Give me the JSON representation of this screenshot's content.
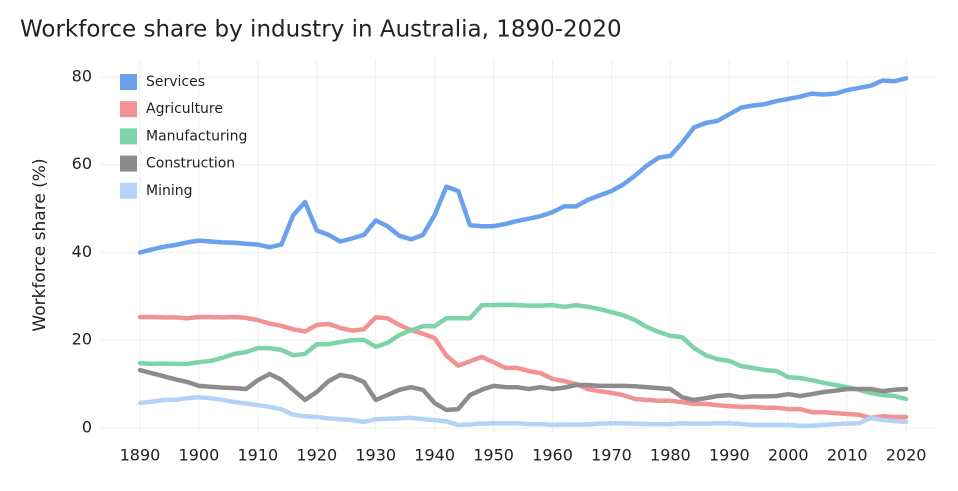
{
  "chart_data": {
    "type": "line",
    "title": "Workforce share by industry in Australia, 1890-2020",
    "ylabel": "Workforce share (%)",
    "x": [
      1890,
      1892,
      1894,
      1896,
      1898,
      1900,
      1902,
      1904,
      1906,
      1908,
      1910,
      1912,
      1914,
      1916,
      1918,
      1920,
      1922,
      1924,
      1926,
      1928,
      1930,
      1932,
      1934,
      1936,
      1938,
      1940,
      1942,
      1944,
      1946,
      1948,
      1950,
      1952,
      1954,
      1956,
      1958,
      1960,
      1962,
      1964,
      1966,
      1968,
      1970,
      1972,
      1974,
      1976,
      1978,
      1980,
      1982,
      1984,
      1986,
      1988,
      1990,
      1992,
      1994,
      1996,
      1998,
      2000,
      2002,
      2004,
      2006,
      2008,
      2010,
      2012,
      2014,
      2016,
      2018,
      2020
    ],
    "series": [
      {
        "name": "Services",
        "color": "#6aa0ec",
        "values": [
          40,
          40.7,
          41.3,
          41.7,
          42.3,
          42.7,
          42.5,
          42.3,
          42.2,
          42,
          41.8,
          41.2,
          41.8,
          48.5,
          51.5,
          45,
          44,
          42.5,
          43.2,
          44,
          47.3,
          46,
          43.8,
          43,
          44,
          48.5,
          55,
          54,
          46.2,
          46,
          46,
          46.5,
          47.2,
          47.7,
          48.3,
          49.2,
          50.5,
          50.5,
          52,
          53,
          54,
          55.5,
          57.5,
          59.8,
          61.6,
          62,
          65,
          68.5,
          69.5,
          70,
          71.5,
          73,
          73.5,
          73.8,
          74.5,
          75,
          75.5,
          76.2,
          76,
          76.2,
          77,
          77.5,
          78,
          79.2,
          79,
          79.7
        ]
      },
      {
        "name": "Agriculture",
        "color": "#f09392",
        "values": [
          25.3,
          25.3,
          25.2,
          25.2,
          25,
          25.3,
          25.3,
          25.2,
          25.3,
          25.1,
          24.6,
          23.8,
          23.3,
          22.5,
          22,
          23.5,
          23.7,
          22.8,
          22.2,
          22.5,
          25.2,
          25,
          23.5,
          22.3,
          21.5,
          20.5,
          16.5,
          14.2,
          15.2,
          16.2,
          15,
          13.7,
          13.7,
          13,
          12.5,
          11.2,
          10.7,
          10,
          8.9,
          8.4,
          8,
          7.5,
          6.6,
          6.4,
          6.2,
          6.2,
          5.9,
          5.5,
          5.5,
          5.2,
          5,
          4.8,
          4.8,
          4.6,
          4.6,
          4.3,
          4.3,
          3.6,
          3.6,
          3.4,
          3.2,
          3,
          2.3,
          2.7,
          2.5,
          2.5
        ]
      },
      {
        "name": "Manufacturing",
        "color": "#7fd3a9",
        "values": [
          14.8,
          14.6,
          14.7,
          14.6,
          14.6,
          15,
          15.3,
          16,
          16.9,
          17.3,
          18.2,
          18.2,
          17.8,
          16.6,
          16.9,
          19.1,
          19.1,
          19.6,
          20,
          20.1,
          18.5,
          19.4,
          21.2,
          22.3,
          23.2,
          23.2,
          25,
          25,
          25,
          28,
          28,
          28.1,
          28,
          27.9,
          27.9,
          28,
          27.6,
          28,
          27.6,
          27.1,
          26.4,
          25.7,
          24.6,
          23,
          21.9,
          21,
          20.7,
          18.2,
          16.6,
          15.7,
          15.3,
          14.1,
          13.7,
          13.2,
          13,
          11.6,
          11.4,
          10.9,
          10.3,
          9.8,
          9.3,
          8.7,
          8,
          7.5,
          7.3,
          6.6
        ]
      },
      {
        "name": "Construction",
        "color": "#8c8c8c",
        "values": [
          13.2,
          12.5,
          11.8,
          11.1,
          10.5,
          9.6,
          9.4,
          9.2,
          9.1,
          8.9,
          10.9,
          12.3,
          11,
          8.7,
          6.4,
          8.2,
          10.7,
          12.1,
          11.6,
          10.5,
          6.4,
          7.5,
          8.7,
          9.3,
          8.7,
          5.7,
          4.1,
          4.3,
          7.5,
          8.7,
          9.6,
          9.3,
          9.3,
          8.9,
          9.3,
          8.9,
          9.2,
          9.8,
          9.8,
          9.6,
          9.6,
          9.6,
          9.5,
          9.3,
          9.1,
          8.9,
          7,
          6.4,
          6.8,
          7.3,
          7.5,
          7,
          7.2,
          7.2,
          7.3,
          7.7,
          7.3,
          7.7,
          8.2,
          8.5,
          8.9,
          8.9,
          8.9,
          8.4,
          8.7,
          8.9
        ]
      },
      {
        "name": "Mining",
        "color": "#b5d2f7",
        "values": [
          5.7,
          6,
          6.4,
          6.4,
          6.8,
          7,
          6.8,
          6.4,
          5.9,
          5.6,
          5.2,
          4.8,
          4.3,
          3,
          2.7,
          2.5,
          2.2,
          2,
          1.8,
          1.4,
          2,
          2.1,
          2.2,
          2.3,
          2,
          1.8,
          1.5,
          0.7,
          0.8,
          1,
          1.1,
          1.1,
          1.1,
          0.9,
          0.9,
          0.7,
          0.8,
          0.8,
          0.8,
          1,
          1.1,
          1.1,
          1,
          0.9,
          0.9,
          0.9,
          1.1,
          1,
          1,
          1.1,
          1.1,
          0.9,
          0.7,
          0.7,
          0.7,
          0.7,
          0.5,
          0.5,
          0.7,
          0.9,
          1,
          1.1,
          2.3,
          1.8,
          1.6,
          1.4
        ]
      }
    ],
    "xlim": [
      1885,
      2025
    ],
    "ylim": [
      -1,
      84
    ],
    "xticks": [
      1890,
      1900,
      1910,
      1920,
      1930,
      1940,
      1950,
      1960,
      1970,
      1980,
      1990,
      2000,
      2010,
      2020
    ],
    "yticks": [
      0,
      20,
      40,
      60,
      80
    ],
    "grid": true,
    "legend": "top-left"
  }
}
